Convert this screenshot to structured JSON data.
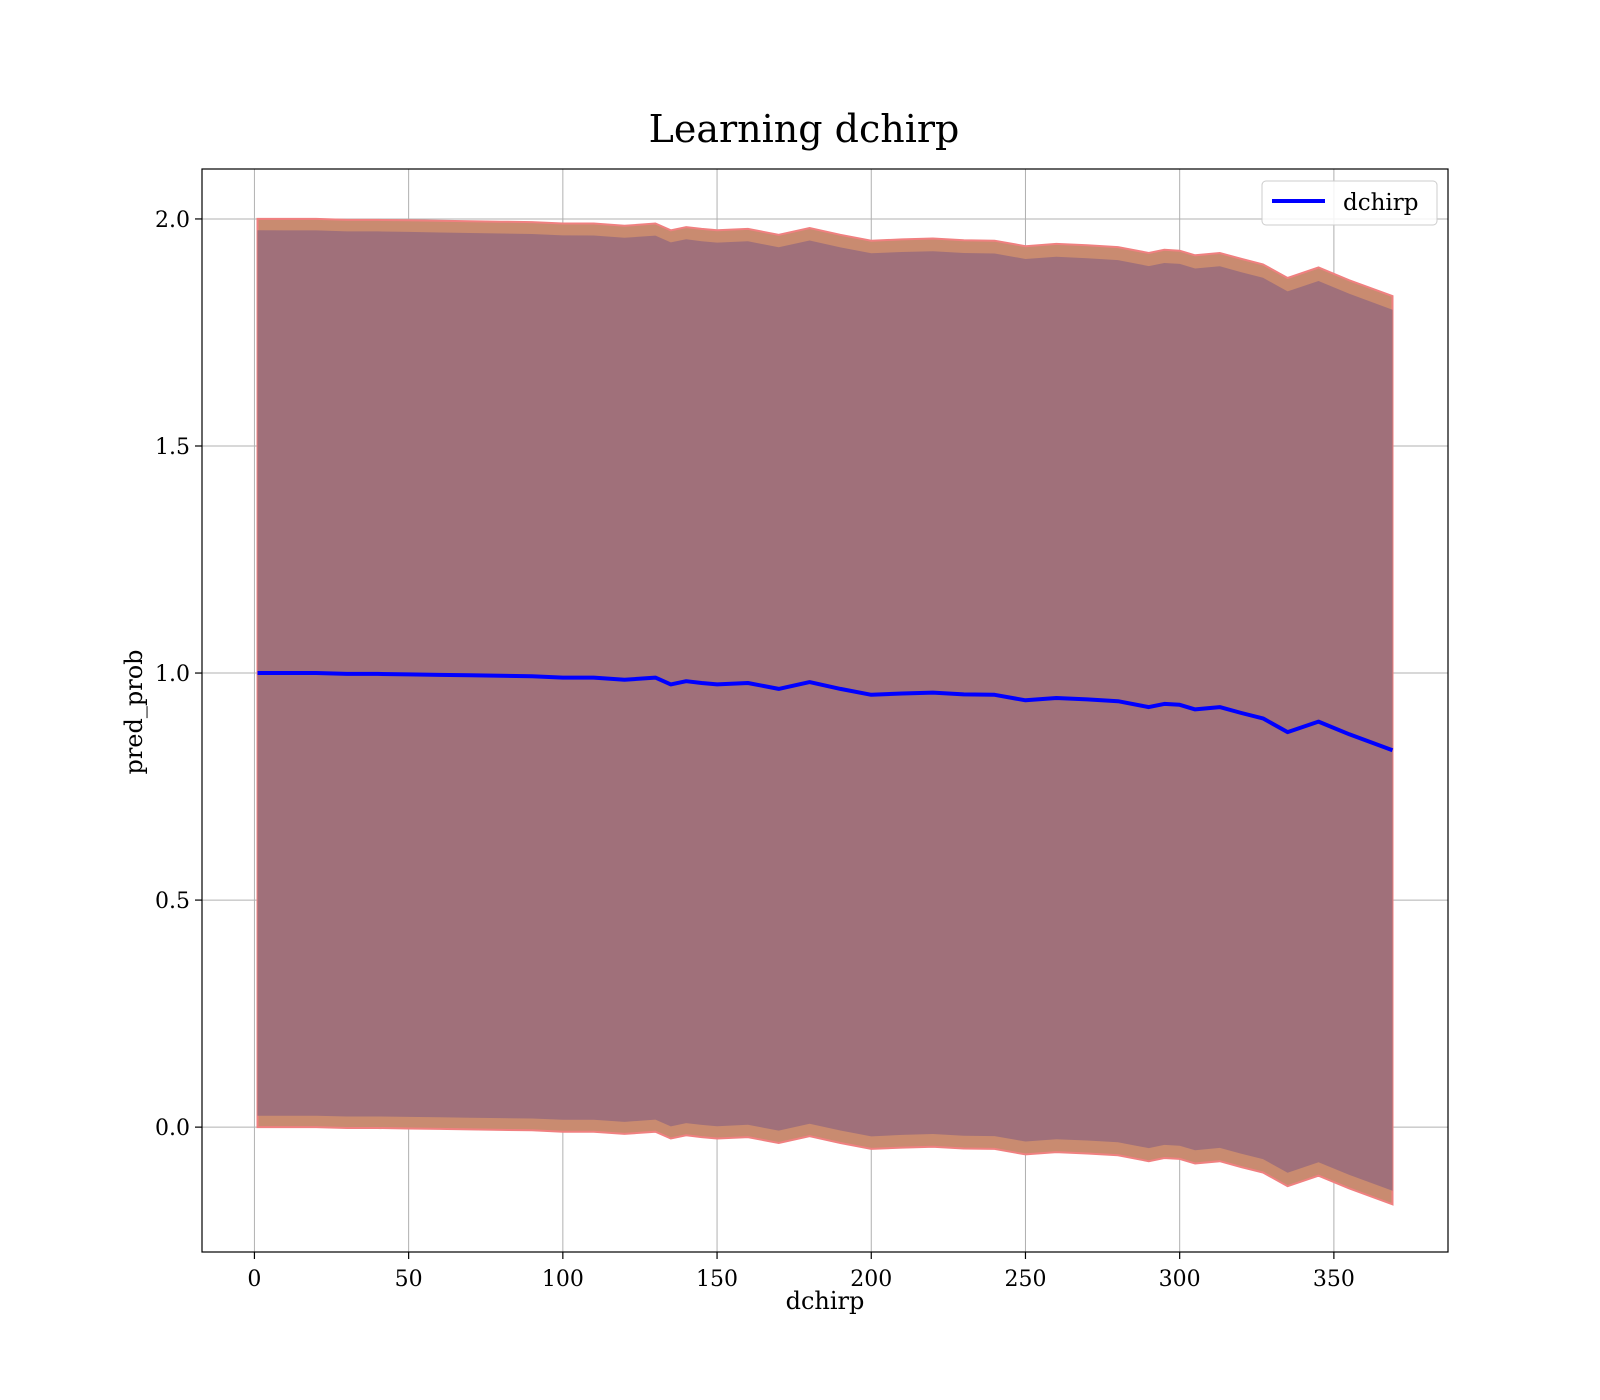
{
  "chart_data": {
    "type": "line",
    "title": "Learning dchirp",
    "xlabel": "dchirp",
    "ylabel": "pred_prob",
    "xlim": [
      -17,
      387
    ],
    "ylim": [
      -0.275,
      2.11
    ],
    "x_ticks": [
      0,
      50,
      100,
      150,
      200,
      250,
      300,
      350
    ],
    "y_ticks": [
      0.0,
      0.5,
      1.0,
      1.5,
      2.0
    ],
    "x_tick_labels": [
      "0",
      "50",
      "100",
      "150",
      "200",
      "250",
      "300",
      "350"
    ],
    "y_tick_labels": [
      "0.0",
      "0.5",
      "1.0",
      "1.5",
      "2.0"
    ],
    "grid": true,
    "legend": {
      "position": "top-right",
      "entries": [
        "dchirp"
      ]
    },
    "colors": {
      "line": "#0000ff",
      "band_outer": "#c98b70",
      "band_outer_edge": "#f08080",
      "band_inner": "#a0707a",
      "grid": "#b0b0b0"
    },
    "series": [
      {
        "name": "dchirp",
        "x": [
          1,
          10,
          20,
          30,
          40,
          50,
          60,
          70,
          80,
          90,
          100,
          110,
          120,
          130,
          135,
          140,
          145,
          150,
          160,
          170,
          180,
          190,
          200,
          210,
          220,
          230,
          240,
          250,
          260,
          270,
          280,
          290,
          295,
          300,
          305,
          313,
          320,
          327,
          335,
          345,
          355,
          369
        ],
        "y": [
          1.0,
          1.0,
          1.0,
          0.998,
          0.998,
          0.997,
          0.996,
          0.995,
          0.994,
          0.993,
          0.99,
          0.99,
          0.985,
          0.99,
          0.975,
          0.982,
          0.978,
          0.975,
          0.978,
          0.965,
          0.98,
          0.965,
          0.952,
          0.955,
          0.957,
          0.953,
          0.952,
          0.94,
          0.945,
          0.942,
          0.938,
          0.925,
          0.932,
          0.93,
          0.92,
          0.925,
          0.912,
          0.9,
          0.87,
          0.893,
          0.865,
          0.83
        ]
      }
    ],
    "bands": [
      {
        "label": "outer",
        "offset_upper_base": 1.0,
        "offset_upper_end": 1.0,
        "offset_lower_base": 1.0,
        "offset_lower_end": 1.0
      },
      {
        "label": "inner",
        "offset_upper_base": 0.975,
        "offset_upper_end": 0.97,
        "offset_lower_base": 0.975,
        "offset_lower_end": 0.97
      }
    ]
  }
}
